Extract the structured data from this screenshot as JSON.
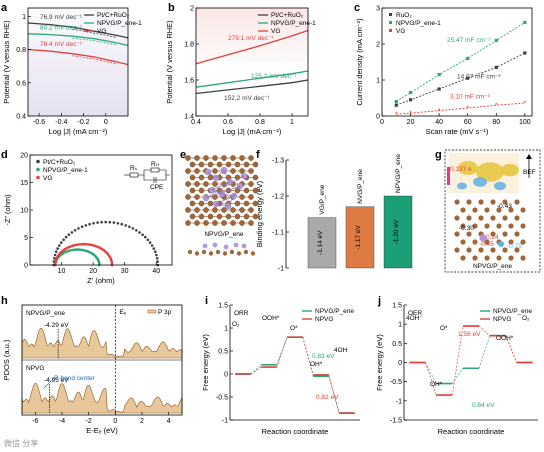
{
  "colors": {
    "pt": "#404040",
    "npvg": "#2aa876",
    "vg": "#e0413a",
    "ruo2": "#404040",
    "orange": "#de7a43",
    "gray_bar": "#a9a9a9",
    "green_bar": "#1a9f76",
    "red_bar": "#d8534e",
    "atom_brown": "#a0673b",
    "atom_purple": "#b39ad6",
    "atom_blue": "#55b5e6"
  },
  "chart_data": [
    {
      "panel": "a",
      "type": "line",
      "xlabel": "Log |J| (mA cm⁻²)",
      "ylabel": "Potential (V versus RHE)",
      "xlim": [
        -0.7,
        0.2
      ],
      "ylim": [
        0.4,
        1.05
      ],
      "xticks": [
        -0.6,
        -0.4,
        -0.2,
        0.0
      ],
      "yticks": [
        0.4,
        0.6,
        0.8,
        1.0
      ],
      "x": [
        -0.7,
        -0.5,
        -0.3,
        -0.1,
        0.1,
        0.2
      ],
      "series": [
        {
          "name": "Pt/C+RuO₂",
          "color_key": "pt",
          "values": [
            0.96,
            0.95,
            0.935,
            0.91,
            0.885,
            0.87
          ]
        },
        {
          "name": "NPVG/P_ene-1",
          "color_key": "npvg",
          "values": [
            0.895,
            0.89,
            0.88,
            0.865,
            0.84,
            0.825
          ]
        },
        {
          "name": "VG",
          "color_key": "vg",
          "values": [
            0.8,
            0.79,
            0.775,
            0.755,
            0.725,
            0.71
          ]
        }
      ],
      "annotations": [
        "76.9 mV dec⁻¹",
        "80.2 mV dec⁻¹",
        "78.4 mV dec⁻¹"
      ]
    },
    {
      "panel": "b",
      "type": "line",
      "xlabel": "Log |J| (mA cm⁻²)",
      "ylabel": "Potential (V versus RHE)",
      "xlim": [
        0.4,
        1.1
      ],
      "ylim": [
        1.4,
        2.0
      ],
      "xticks": [
        0.4,
        0.6,
        0.8,
        1.0
      ],
      "yticks": [
        1.4,
        1.6,
        1.8,
        2.0
      ],
      "x": [
        0.4,
        0.6,
        0.8,
        1.0,
        1.1
      ],
      "series": [
        {
          "name": "Pt/C+RuO₂",
          "color_key": "pt",
          "values": [
            1.525,
            1.545,
            1.565,
            1.585,
            1.6
          ]
        },
        {
          "name": "NPVG/P_ene-1",
          "color_key": "npvg",
          "values": [
            1.56,
            1.585,
            1.61,
            1.635,
            1.65
          ]
        },
        {
          "name": "VG",
          "color_key": "vg",
          "values": [
            1.69,
            1.74,
            1.79,
            1.845,
            1.875
          ]
        }
      ],
      "annotations": [
        "279.1 mV dec⁻¹",
        "125.2 mV dec⁻¹",
        "152.2 mV dec⁻¹"
      ]
    },
    {
      "panel": "c",
      "type": "scatter",
      "xlabel": "Scan rate (mV s⁻¹)",
      "ylabel": "Current density (mA cm⁻²)",
      "xlim": [
        0,
        105
      ],
      "ylim": [
        0,
        3
      ],
      "xticks": [
        0,
        20,
        40,
        60,
        80,
        100
      ],
      "yticks": [
        0,
        1,
        2,
        3
      ],
      "x": [
        10,
        20,
        40,
        60,
        80,
        100
      ],
      "series": [
        {
          "name": "RuO₂",
          "color_key": "ruo2",
          "values": [
            0.3,
            0.45,
            0.75,
            1.05,
            1.35,
            1.75
          ]
        },
        {
          "name": "NPVG/P_ene-1",
          "color_key": "npvg",
          "values": [
            0.4,
            0.65,
            1.15,
            1.6,
            2.1,
            2.6
          ]
        },
        {
          "name": "VG",
          "color_key": "vg",
          "values": [
            0.05,
            0.08,
            0.15,
            0.22,
            0.3,
            0.36
          ]
        }
      ],
      "annotations": [
        "25.47 mF cm⁻²",
        "14.07 mF cm⁻²",
        "3.10 mF cm⁻²"
      ]
    },
    {
      "panel": "d",
      "type": "scatter",
      "xlabel": "Z’ (ohm)",
      "ylabel": "-Z” (ohm)",
      "xlim": [
        0,
        45
      ],
      "ylim": [
        0,
        20
      ],
      "xticks": [
        10,
        20,
        30,
        40
      ],
      "yticks": [
        0,
        5,
        10,
        15,
        20
      ],
      "series": [
        {
          "name": "Pt/C+RuO₂",
          "color_key": "pt",
          "center": 24.0,
          "radius": 16.5,
          "ymax": 7.8
        },
        {
          "name": "NPVG/P_ene-1",
          "color_key": "npvg",
          "center": 15.0,
          "radius": 7.0,
          "ymax": 2.8
        },
        {
          "name": "VG",
          "color_key": "vg",
          "center": 17.0,
          "radius": 9.0,
          "ymax": 3.8
        }
      ],
      "circuit_labels": [
        "Rₛ",
        "Rₜₜ",
        "CPE"
      ]
    },
    {
      "panel": "f",
      "type": "bar",
      "ylabel": "Binding energy (eV)",
      "ylim": [
        -1.3,
        -1.0
      ],
      "yticks": [
        -1.3,
        -1.2,
        -1.1,
        -1.0
      ],
      "categories": [
        "VG/P_ene",
        "NVG/P_ene",
        "NPVG/P_ene"
      ],
      "values": [
        -1.14,
        -1.17,
        -1.2
      ],
      "value_labels": [
        "-1.14 eV",
        "-1.17 eV",
        "-1.20 eV"
      ],
      "bar_color_keys": [
        "gray_bar",
        "orange",
        "green_bar"
      ]
    },
    {
      "panel": "h",
      "type": "area",
      "xlabel": "E-Eₑ (eV)",
      "ylabel": "PDOS (a.u.)",
      "xlim": [
        -7,
        5
      ],
      "xticks": [
        -6,
        -4,
        -2,
        0,
        2,
        4
      ],
      "ef_label": "Eₑ",
      "series": [
        {
          "name": "NPVG/P_ene",
          "band_center": -4.29,
          "band_label": "-4.29 eV"
        },
        {
          "name": "NPVG",
          "band_center": -4.95,
          "band_label": "-4.95 eV"
        }
      ],
      "legend": "P 3p",
      "annotation": "P-band center"
    },
    {
      "panel": "i",
      "type": "line",
      "title": "ORR",
      "xlabel": "Reaction coordinate",
      "ylabel": "Free energy (eV)",
      "ylim": [
        -1.0,
        1.5
      ],
      "yticks": [
        -1.0,
        -0.5,
        0.0,
        0.5,
        1.0,
        1.5
      ],
      "steps": [
        "O₂",
        "OOH*",
        "O*",
        "OH*",
        "4OH"
      ],
      "series": [
        {
          "name": "NPVG/P_ene",
          "color_key": "npvg",
          "values": [
            0.0,
            0.2,
            0.8,
            -0.05,
            -0.85
          ]
        },
        {
          "name": "NPVG",
          "color_key": "vg",
          "values": [
            0.0,
            0.15,
            0.8,
            -0.02,
            -0.85
          ]
        }
      ],
      "annotations": [
        "0.83 eV",
        "0.82 eV"
      ]
    },
    {
      "panel": "j",
      "type": "line",
      "title": "OER",
      "xlabel": "Reaction coordinate",
      "ylabel": "Free energy (eV)",
      "ylim": [
        -1.5,
        1.5
      ],
      "yticks": [
        -1.5,
        -1.0,
        -0.5,
        0.0,
        0.5,
        1.0,
        1.5
      ],
      "steps": [
        "4OH⁻",
        "OH*",
        "O*",
        "OOH*",
        "O₂"
      ],
      "series": [
        {
          "name": "NPVG/P_ene",
          "color_key": "npvg",
          "values": [
            0.0,
            -0.55,
            -0.15,
            0.7,
            0.0
          ]
        },
        {
          "name": "NPVG",
          "color_key": "vg",
          "values": [
            0.0,
            -0.85,
            0.95,
            0.7,
            0.0
          ]
        }
      ],
      "annotations": [
        "1.58 eV",
        "0.84 eV"
      ]
    }
  ],
  "panels": {
    "e": {
      "label": "NPVG/P_ene"
    },
    "g": {
      "label": "NPVG/P_ene",
      "charges": [
        "0.137 e",
        "-0.43",
        "-0.30",
        "0.24",
        "-0.45",
        "-0.79"
      ],
      "field_label": "BEF"
    }
  },
  "panel_letters": [
    "a",
    "b",
    "c",
    "d",
    "e",
    "f",
    "g",
    "h",
    "i",
    "j"
  ],
  "watermark": "微信 分享"
}
